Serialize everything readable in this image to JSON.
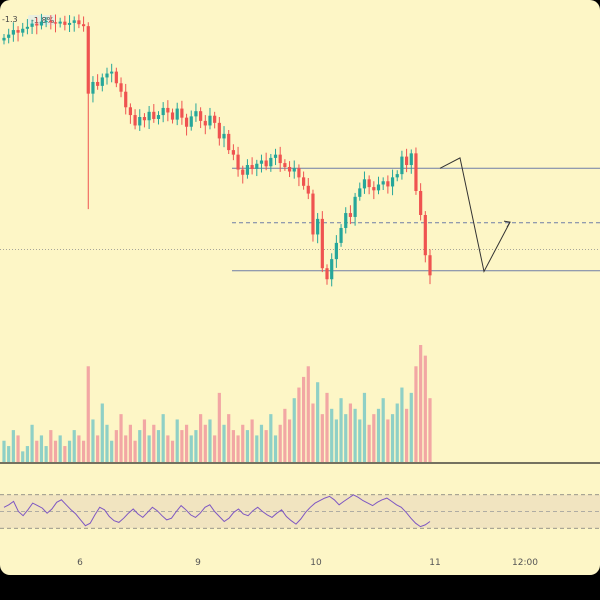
{
  "chart_data": {
    "type": "candlestick",
    "legend_value": "-1.3",
    "legend_badge": "-1.8%",
    "x_tick_labels": [
      "6",
      "9",
      "10",
      "11",
      "12:00"
    ],
    "price_series": {
      "note_values_in_arbitrary_price_units": true,
      "close": [
        100.4,
        100.9,
        101.6,
        101.2,
        101.8,
        102.1,
        102.6,
        102.3,
        102.9,
        103.0,
        102.8,
        102.6,
        102.9,
        102.4,
        102.7,
        103.1,
        102.5,
        102.2,
        91.8,
        93.6,
        93.0,
        94.3,
        94.9,
        95.2,
        93.4,
        92.1,
        89.7,
        88.5,
        86.9,
        88.2,
        87.7,
        89.0,
        87.9,
        88.5,
        89.6,
        88.9,
        87.8,
        89.5,
        88.1,
        86.7,
        88.3,
        89.1,
        87.6,
        86.9,
        88.4,
        87.3,
        84.9,
        85.6,
        83.1,
        82.4,
        80.1,
        79.3,
        80.8,
        80.2,
        81.0,
        81.5,
        80.6,
        81.9,
        82.4,
        81.1,
        80.5,
        79.8,
        80.3,
        78.9,
        77.6,
        76.4,
        70.1,
        72.5,
        64.9,
        63.2,
        66.3,
        68.8,
        71.1,
        73.4,
        72.8,
        75.9,
        77.2,
        78.6,
        77.4,
        76.9,
        77.8,
        78.3,
        77.5,
        78.9,
        79.4,
        82.1,
        80.8,
        82.6,
        76.8,
        73.1,
        66.9,
        63.8
      ],
      "support_top": 80.3,
      "support_mid": 71.9,
      "support_low": 64.5,
      "current_price": 67.8,
      "projection": [
        [
          440,
          80.3
        ],
        [
          460,
          81.9
        ],
        [
          484,
          64.4
        ],
        [
          510,
          72.0
        ]
      ]
    },
    "volume": [
      4,
      3,
      6,
      5,
      2,
      3,
      7,
      4,
      5,
      3,
      6,
      4,
      5,
      3,
      4,
      6,
      5,
      4,
      18,
      8,
      5,
      11,
      7,
      4,
      6,
      9,
      5,
      7,
      4,
      6,
      8,
      5,
      7,
      6,
      9,
      5,
      4,
      8,
      6,
      7,
      5,
      6,
      9,
      7,
      8,
      5,
      13,
      7,
      9,
      6,
      5,
      7,
      6,
      8,
      5,
      7,
      6,
      9,
      5,
      7,
      10,
      8,
      12,
      14,
      16,
      18,
      11,
      15,
      9,
      13,
      10,
      8,
      12,
      9,
      11,
      10,
      8,
      13,
      7,
      9,
      10,
      12,
      8,
      9,
      11,
      14,
      10,
      13,
      18,
      22,
      20,
      12
    ],
    "rsi": {
      "upper_band": 70,
      "lower_band": 30,
      "mid": 50,
      "values": [
        55,
        58,
        62,
        50,
        45,
        52,
        60,
        57,
        54,
        48,
        53,
        61,
        64,
        58,
        52,
        47,
        40,
        33,
        36,
        46,
        55,
        52,
        44,
        39,
        37,
        42,
        48,
        53,
        47,
        43,
        49,
        55,
        51,
        45,
        40,
        42,
        50,
        57,
        52,
        46,
        43,
        48,
        55,
        58,
        50,
        44,
        38,
        42,
        49,
        53,
        47,
        45,
        51,
        55,
        50,
        46,
        43,
        48,
        52,
        44,
        39,
        35,
        41,
        49,
        55,
        60,
        63,
        66,
        68,
        64,
        58,
        62,
        66,
        70,
        67,
        63,
        60,
        57,
        61,
        64,
        66,
        62,
        58,
        55,
        49,
        42,
        36,
        32,
        34,
        38
      ]
    }
  }
}
